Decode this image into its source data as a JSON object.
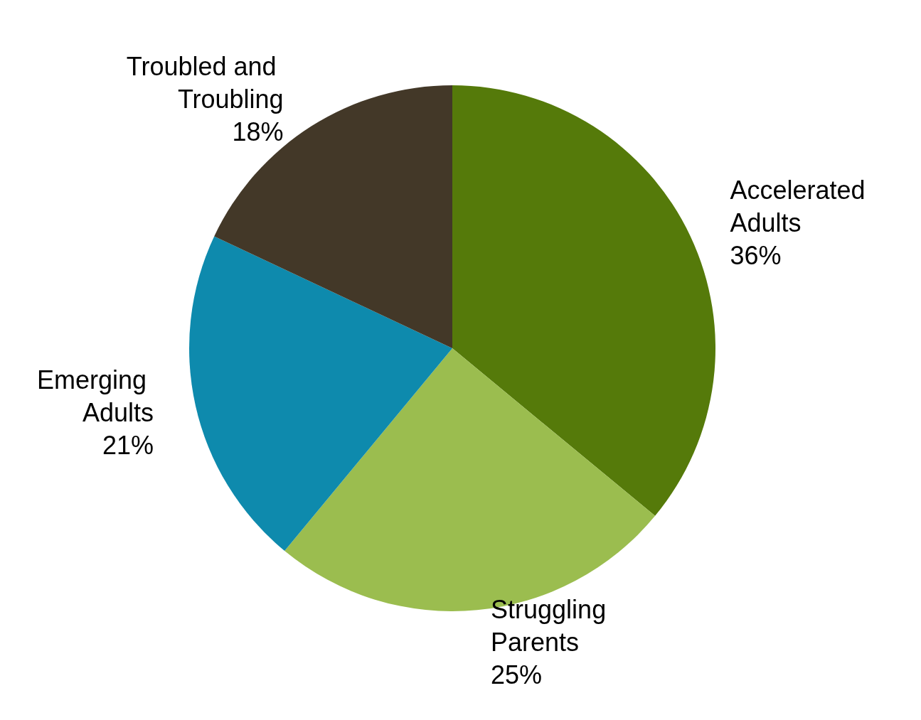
{
  "chart_data": {
    "type": "pie",
    "categories": [
      "Accelerated Adults",
      "Struggling Parents",
      "Emerging Adults",
      "Troubled and Troubling"
    ],
    "values": [
      36,
      25,
      21,
      18
    ],
    "value_labels": [
      "36%",
      "25%",
      "21%",
      "18%"
    ],
    "colors": [
      "#557a0a",
      "#9bbd4f",
      "#0e8aad",
      "#433828"
    ],
    "legend": false
  }
}
